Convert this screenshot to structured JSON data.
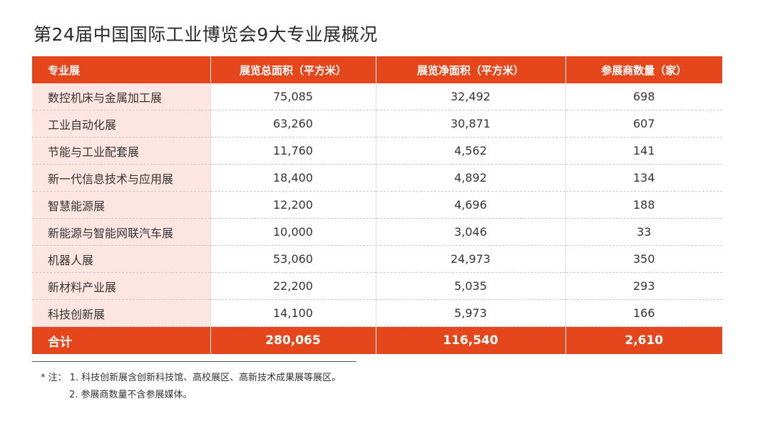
{
  "title": "第24届中国国际工业博览会9大专业展概况",
  "table": {
    "headers": [
      "专业展",
      "展览总面积（平方米）",
      "展览净面积（平方米）",
      "参展商数量（家）"
    ],
    "rows": [
      [
        "数控机床与金属加工展",
        "75,085",
        "32,492",
        "698"
      ],
      [
        "工业自动化展",
        "63,260",
        "30,871",
        "607"
      ],
      [
        "节能与工业配套展",
        "11,760",
        "4,562",
        "141"
      ],
      [
        "新一代信息技术与应用展",
        "18,400",
        "4,892",
        "134"
      ],
      [
        "智慧能源展",
        "12,200",
        "4,696",
        "188"
      ],
      [
        "新能源与智能网联汽车展",
        "10,000",
        "3,046",
        "33"
      ],
      [
        "机器人展",
        "53,060",
        "24,973",
        "350"
      ],
      [
        "新材料产业展",
        "22,200",
        "5,035",
        "293"
      ],
      [
        "科技创新展",
        "14,100",
        "5,973",
        "166"
      ]
    ],
    "total": [
      "合计",
      "280,065",
      "116,540",
      "2,610"
    ]
  },
  "notes": {
    "prefix": "* 注：",
    "items": [
      "1. 科技创新展含创新科技馆、高校展区、高新技术成果展等展区。",
      "2. 参展商数量不含参展媒体。"
    ]
  },
  "colors": {
    "accent": "#e6461b",
    "name_column_bg": "#fde6e1"
  }
}
